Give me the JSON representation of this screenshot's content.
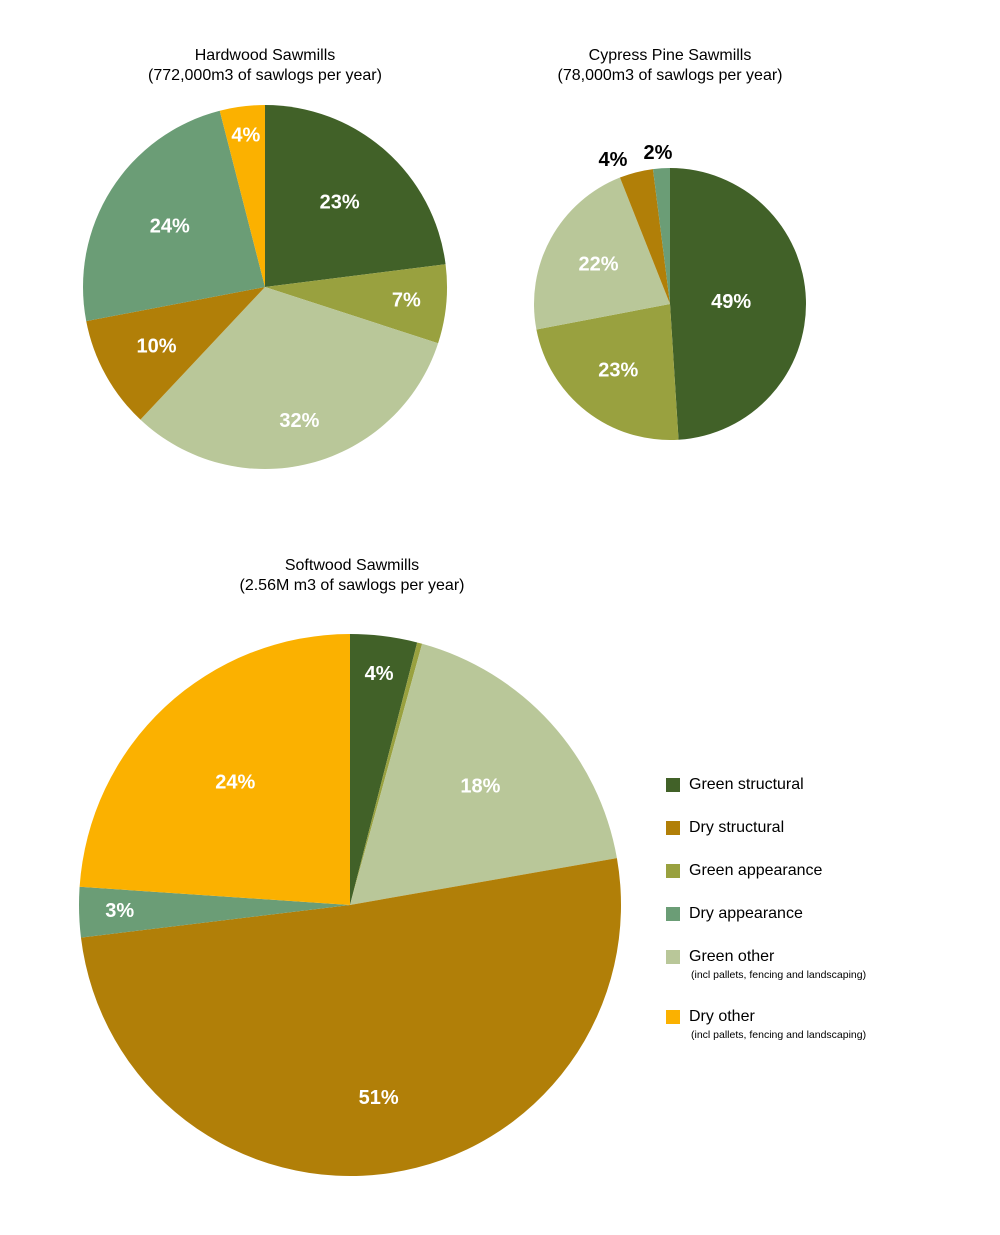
{
  "colors": {
    "green_structural": "#416128",
    "dry_structural": "#b17f08",
    "green_appearance": "#99a13f",
    "dry_appearance": "#6b9d76",
    "green_other": "#b9c799",
    "dry_other": "#fbb100"
  },
  "legend": [
    {
      "key": "green_structural",
      "label": "Green structural",
      "note": ""
    },
    {
      "key": "dry_structural",
      "label": "Dry structural",
      "note": ""
    },
    {
      "key": "green_appearance",
      "label": "Green appearance",
      "note": ""
    },
    {
      "key": "dry_appearance",
      "label": "Dry appearance",
      "note": ""
    },
    {
      "key": "green_other",
      "label": "Green other",
      "note": "(incl pallets, fencing and landscaping)"
    },
    {
      "key": "dry_other",
      "label": "Dry other",
      "note": "(incl pallets, fencing and landscaping)"
    }
  ],
  "chart_data": [
    {
      "type": "pie",
      "title": "Hardwood Sawmills",
      "subtitle": "(772,000m3 of sawlogs per year)",
      "slices": [
        {
          "category": "Green structural",
          "key": "green_structural",
          "value": 23,
          "label": "23%"
        },
        {
          "category": "Green appearance",
          "key": "green_appearance",
          "value": 7,
          "label": "7%"
        },
        {
          "category": "Green other",
          "key": "green_other",
          "value": 32,
          "label": "32%"
        },
        {
          "category": "Dry structural",
          "key": "dry_structural",
          "value": 10,
          "label": "10%"
        },
        {
          "category": "Dry appearance",
          "key": "dry_appearance",
          "value": 24,
          "label": "24%"
        },
        {
          "category": "Dry other",
          "key": "dry_other",
          "value": 4,
          "label": "4%"
        }
      ]
    },
    {
      "type": "pie",
      "title": "Cypress Pine Sawmills",
      "subtitle": "(78,000m3 of sawlogs per year)",
      "slices": [
        {
          "category": "Green structural",
          "key": "green_structural",
          "value": 49,
          "label": "49%"
        },
        {
          "category": "Green appearance",
          "key": "green_appearance",
          "value": 23,
          "label": "23%"
        },
        {
          "category": "Green other",
          "key": "green_other",
          "value": 22,
          "label": "22%"
        },
        {
          "category": "Dry structural",
          "key": "dry_structural",
          "value": 4,
          "label": "4%"
        },
        {
          "category": "Dry appearance",
          "key": "dry_appearance",
          "value": 2,
          "label": "2%"
        }
      ]
    },
    {
      "type": "pie",
      "title": "Softwood Sawmills",
      "subtitle": "(2.56M m3 of sawlogs per year)",
      "slices": [
        {
          "category": "Green structural",
          "key": "green_structural",
          "value": 4,
          "label": "4%"
        },
        {
          "category": "Green appearance",
          "key": "green_appearance",
          "value": 0.3,
          "label": ""
        },
        {
          "category": "Green other",
          "key": "green_other",
          "value": 18,
          "label": "18%"
        },
        {
          "category": "Dry structural",
          "key": "dry_structural",
          "value": 51,
          "label": "51%"
        },
        {
          "category": "Dry appearance",
          "key": "dry_appearance",
          "value": 3,
          "label": "3%"
        },
        {
          "category": "Dry other",
          "key": "dry_other",
          "value": 24,
          "label": "24%"
        }
      ]
    }
  ]
}
